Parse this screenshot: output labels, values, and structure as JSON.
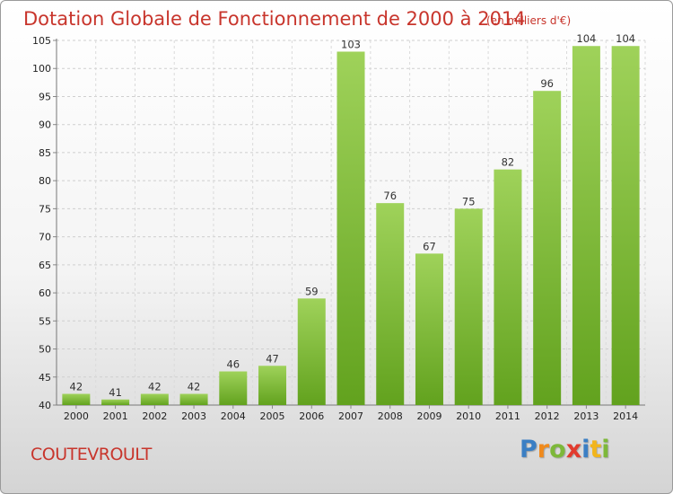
{
  "chart_data": {
    "type": "bar",
    "title": "Dotation Globale de Fonctionnement de 2000 à 2014",
    "subtitle": "(en milliers d'€)",
    "categories": [
      "2000",
      "2001",
      "2002",
      "2003",
      "2004",
      "2005",
      "2006",
      "2007",
      "2008",
      "2009",
      "2010",
      "2011",
      "2012",
      "2013",
      "2014"
    ],
    "values": [
      42,
      41,
      42,
      42,
      46,
      47,
      59,
      103,
      76,
      67,
      75,
      82,
      96,
      104,
      104
    ],
    "ylim": [
      40,
      105
    ],
    "yticks": [
      40,
      45,
      50,
      55,
      60,
      65,
      70,
      75,
      80,
      85,
      90,
      95,
      100,
      105
    ],
    "grid": true,
    "bar_color": "#7fbe35",
    "xlabel": "",
    "ylabel": ""
  },
  "commune": "COUTEVROULT",
  "logo": {
    "letters": [
      "P",
      "r",
      "o",
      "x",
      "i",
      "t",
      "i"
    ],
    "colors": [
      "#3b7fc4",
      "#f08a1c",
      "#7db83a",
      "#e23b2e",
      "#3b7fc4",
      "#f2b51b",
      "#7db83a"
    ]
  }
}
